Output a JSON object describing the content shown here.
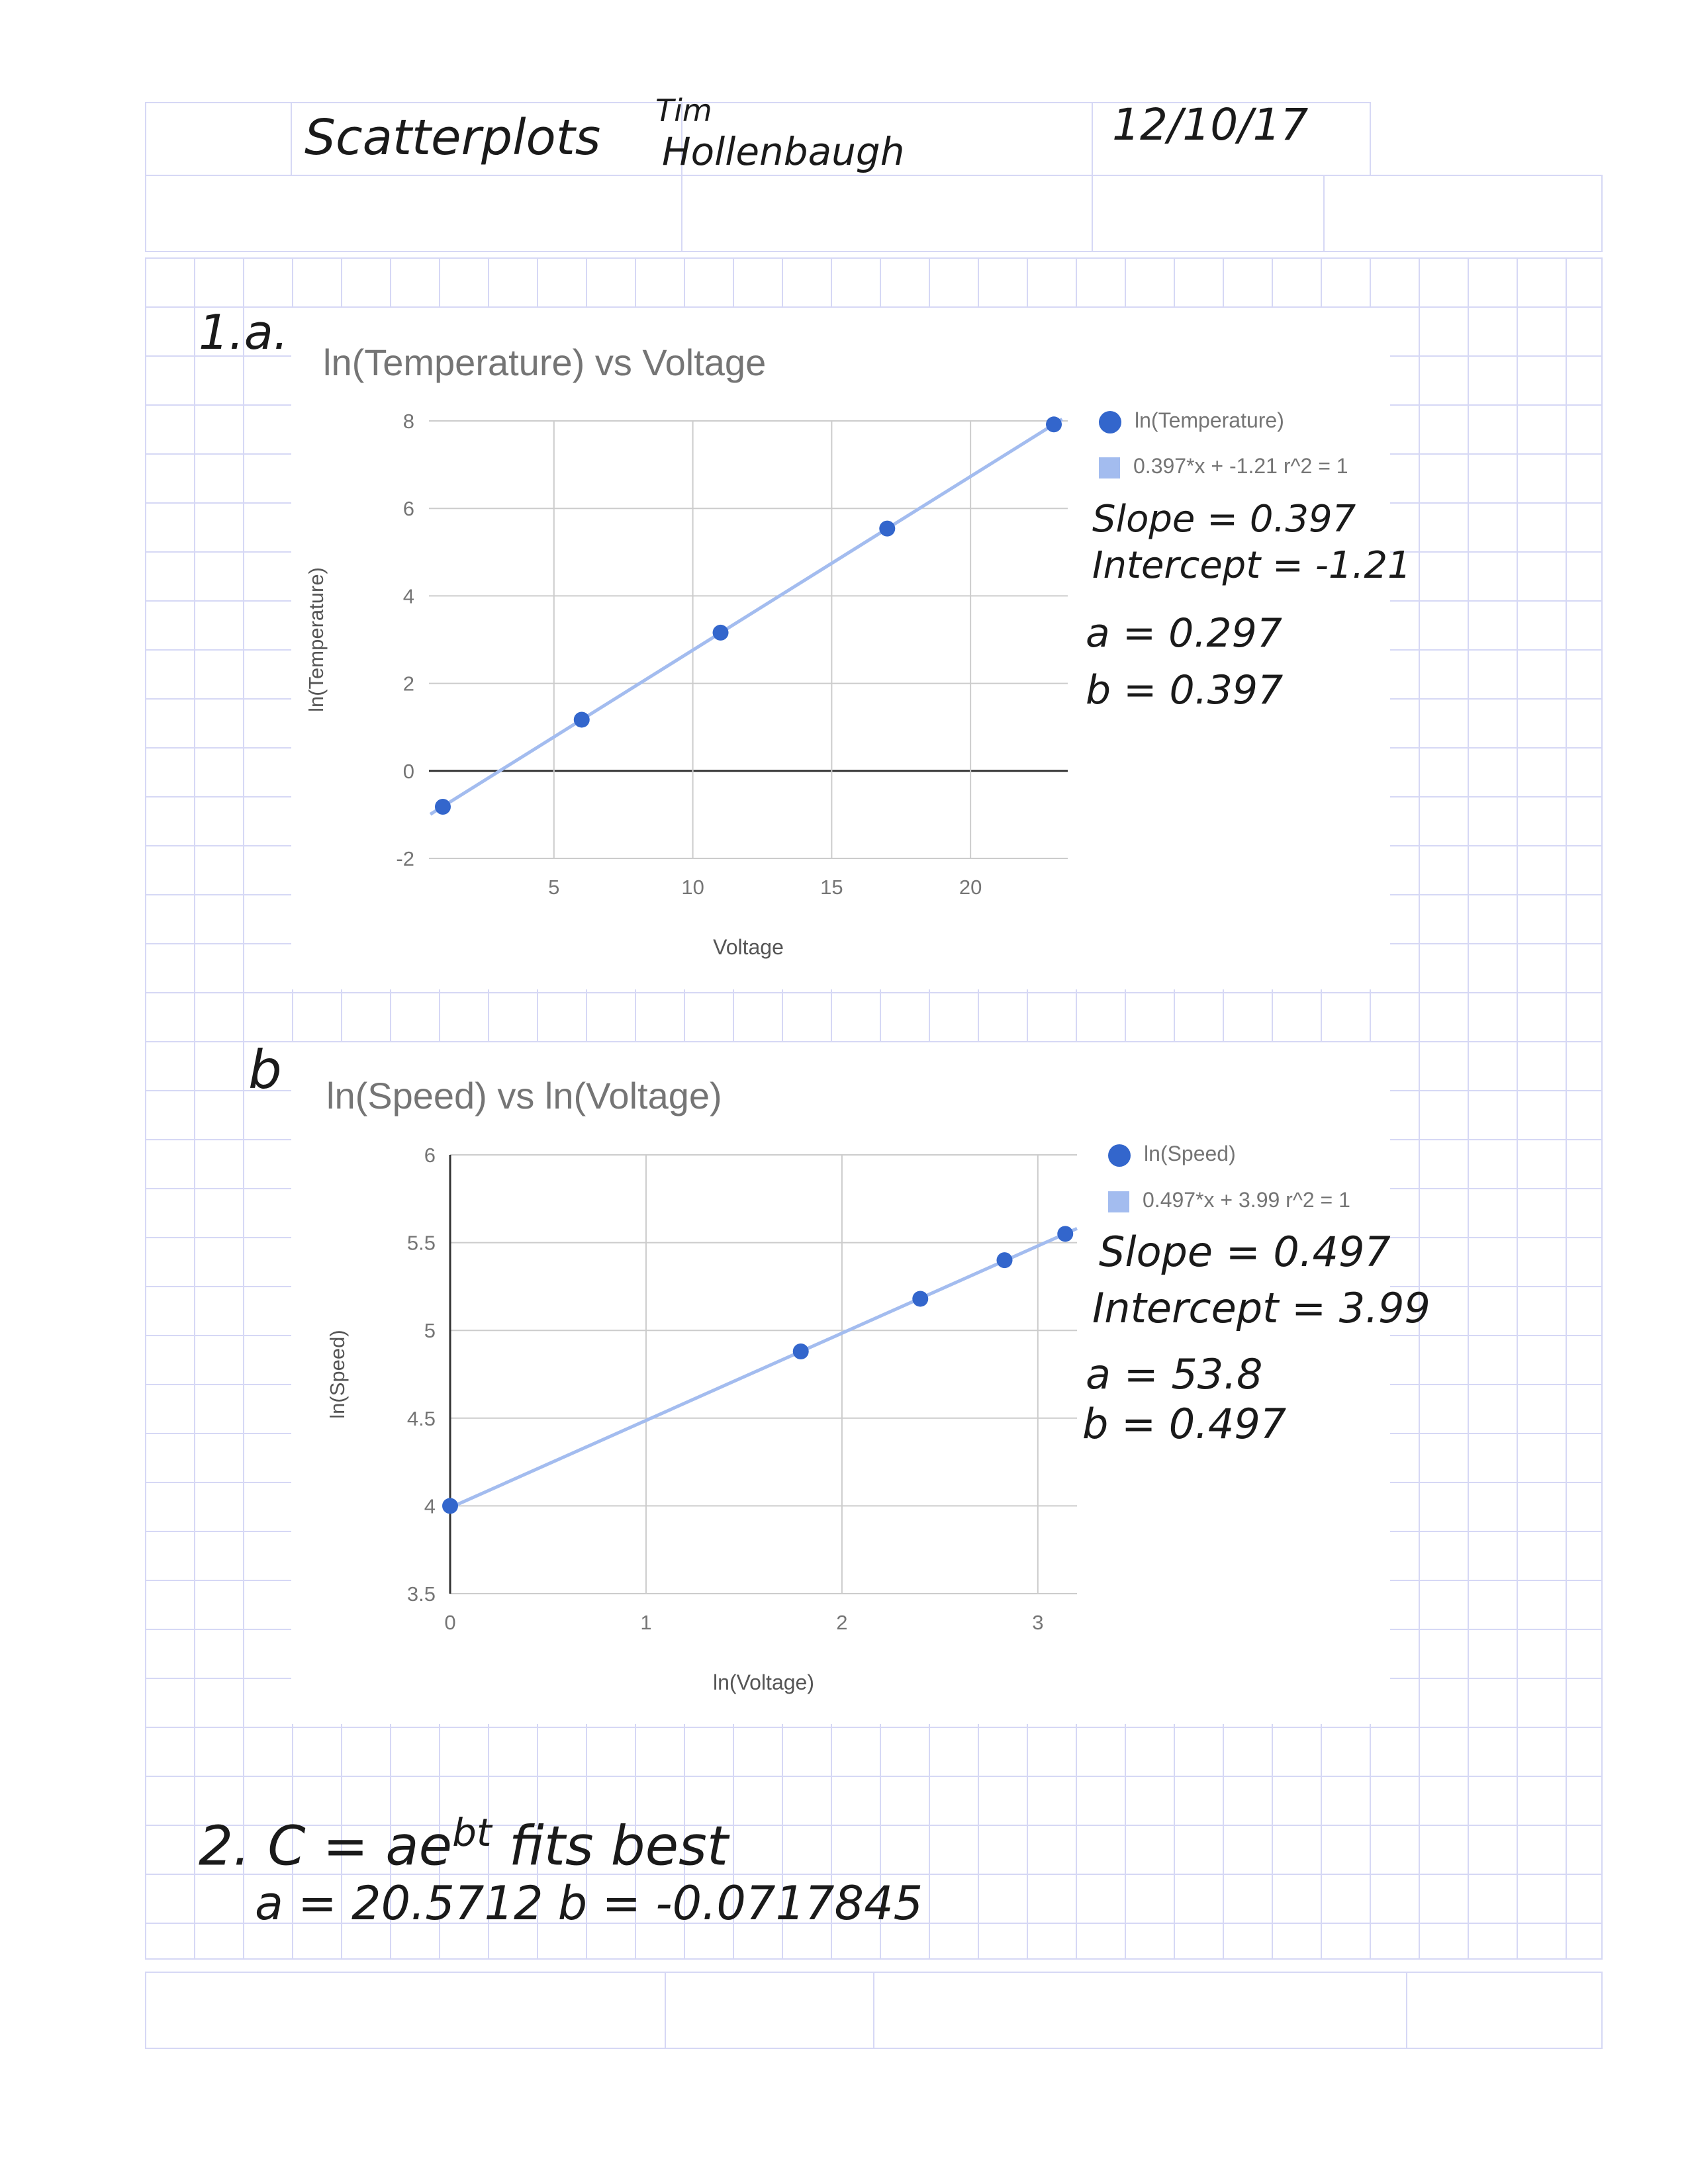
{
  "header": {
    "title_hw": "Scatterplots",
    "name_hw_line1": "Tim",
    "name_hw_line2": "Hollenbaugh",
    "date_hw": "12/10/17"
  },
  "labels": {
    "part_a": "1.a.",
    "part_b": "b",
    "part_2_line1_pre": "2. C = ae",
    "part_2_exp": "bt",
    "part_2_line1_post": " fits best",
    "part_2_line2": "a = 20.5712   b = -0.0717845"
  },
  "annotations_a": [
    "Slope = 0.397",
    "Intercept = -1.21",
    "a = 0.297",
    "b = 0.397"
  ],
  "annotations_b": [
    "Slope = 0.497",
    "Intercept = 3.99",
    "a = 53.8",
    "b = 0.497"
  ],
  "colors": {
    "point": "#3366cc",
    "trendline": "#a3bcef",
    "gridline": "#cccccc",
    "paper_grid": "#d6d8f5",
    "text_gray": "#757575"
  },
  "chart_data": [
    {
      "type": "scatter",
      "title": "ln(Temperature) vs Voltage",
      "xlabel": "Voltage",
      "ylabel": "ln(Temperature)",
      "xlim": [
        0.5,
        23.5
      ],
      "ylim": [
        -2,
        8
      ],
      "x_ticks": [
        "5",
        "10",
        "15",
        "20"
      ],
      "y_ticks": [
        "-2",
        "0",
        "2",
        "4",
        "6",
        "8"
      ],
      "grid": true,
      "legend_position": "right",
      "series": [
        {
          "name": "ln(Temperature)",
          "x": [
            1,
            6,
            11,
            17,
            23
          ],
          "y": [
            -0.82,
            1.17,
            3.16,
            5.54,
            7.92
          ]
        }
      ],
      "trendline": {
        "label": "0.397*x + -1.21 r^2 = 1",
        "slope": 0.397,
        "intercept": -1.21
      }
    },
    {
      "type": "scatter",
      "title": "ln(Speed) vs ln(Voltage)",
      "xlabel": "ln(Voltage)",
      "ylabel": "ln(Speed)",
      "xlim": [
        0,
        3.2
      ],
      "ylim": [
        3.5,
        6
      ],
      "x_ticks": [
        "0",
        "1",
        "2",
        "3"
      ],
      "y_ticks": [
        "3.5",
        "4",
        "4.5",
        "5",
        "5.5",
        "6"
      ],
      "grid": true,
      "legend_position": "right",
      "series": [
        {
          "name": "ln(Speed)",
          "x": [
            0,
            1.79,
            2.4,
            2.83,
            3.14
          ],
          "y": [
            4.0,
            4.88,
            5.18,
            5.4,
            5.55
          ]
        }
      ],
      "trendline": {
        "label": "0.497*x + 3.99 r^2 = 1",
        "slope": 0.497,
        "intercept": 3.99
      }
    }
  ]
}
